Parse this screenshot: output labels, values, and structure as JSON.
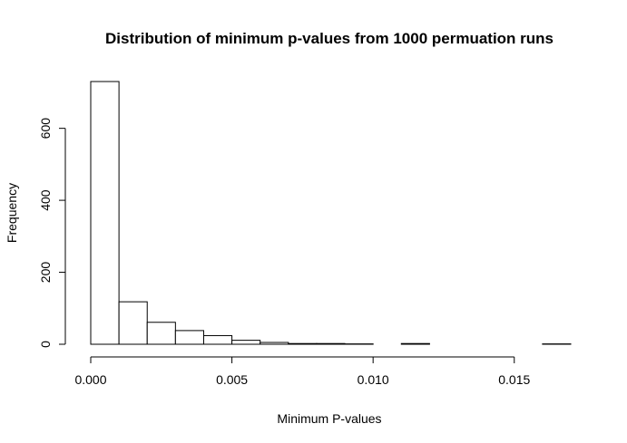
{
  "chart_data": {
    "type": "bar",
    "title": "Distribution of minimum p-values from 1000 permuation runs",
    "xlabel": "Minimum P-values",
    "ylabel": "Frequency",
    "bin_width": 0.001,
    "bins": [
      {
        "start": 0.0,
        "end": 0.001,
        "count": 730
      },
      {
        "start": 0.001,
        "end": 0.002,
        "count": 118
      },
      {
        "start": 0.002,
        "end": 0.003,
        "count": 61
      },
      {
        "start": 0.003,
        "end": 0.004,
        "count": 38
      },
      {
        "start": 0.004,
        "end": 0.005,
        "count": 24
      },
      {
        "start": 0.005,
        "end": 0.006,
        "count": 11
      },
      {
        "start": 0.006,
        "end": 0.007,
        "count": 5
      },
      {
        "start": 0.007,
        "end": 0.008,
        "count": 2
      },
      {
        "start": 0.008,
        "end": 0.009,
        "count": 2
      },
      {
        "start": 0.009,
        "end": 0.01,
        "count": 1
      },
      {
        "start": 0.01,
        "end": 0.011,
        "count": 0
      },
      {
        "start": 0.011,
        "end": 0.012,
        "count": 2
      },
      {
        "start": 0.012,
        "end": 0.013,
        "count": 0
      },
      {
        "start": 0.013,
        "end": 0.014,
        "count": 0
      },
      {
        "start": 0.014,
        "end": 0.015,
        "count": 0
      },
      {
        "start": 0.015,
        "end": 0.016,
        "count": 0
      },
      {
        "start": 0.016,
        "end": 0.017,
        "count": 1
      }
    ],
    "xlim": [
      0,
      0.017
    ],
    "ylim": [
      0,
      730
    ],
    "x_ticks": [
      0.0,
      0.005,
      0.01,
      0.015
    ],
    "x_tick_labels": [
      "0.000",
      "0.005",
      "0.010",
      "0.015"
    ],
    "y_ticks": [
      0,
      200,
      400,
      600
    ],
    "y_tick_labels": [
      "0",
      "200",
      "400",
      "600"
    ],
    "grid": false,
    "legend": "none"
  }
}
